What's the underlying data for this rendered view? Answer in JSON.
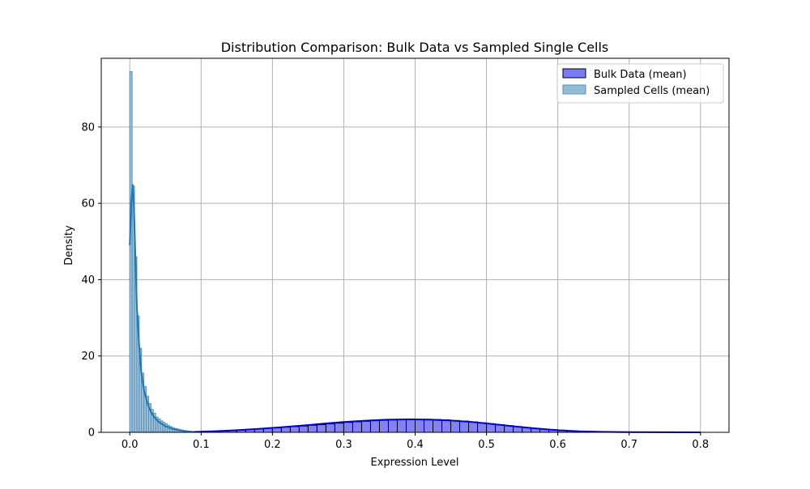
{
  "chart_data": {
    "type": "bar",
    "title": "Distribution Comparison: Bulk Data vs Sampled Single Cells",
    "xlabel": "Expression Level",
    "ylabel": "Density",
    "xlim": [
      -0.04,
      0.84
    ],
    "ylim": [
      0,
      98
    ],
    "xticks": [
      0.0,
      0.1,
      0.2,
      0.3,
      0.4,
      0.5,
      0.6,
      0.7,
      0.8
    ],
    "xtick_labels": [
      "0.0",
      "0.1",
      "0.2",
      "0.3",
      "0.4",
      "0.5",
      "0.6",
      "0.7",
      "0.8"
    ],
    "yticks": [
      0,
      20,
      40,
      60,
      80
    ],
    "ytick_labels": [
      "0",
      "20",
      "40",
      "60",
      "80"
    ],
    "grid": true,
    "legend_position": "top-right",
    "colors": {
      "bulk_fill": "#7b7bf5",
      "bulk_line": "#0000cc",
      "cells_fill": "#93bbd6",
      "cells_line": "#1f77b4"
    },
    "series": [
      {
        "name": "Bulk Data (mean)",
        "kind": "histogram",
        "bin_width": 0.0125,
        "bins": [
          [
            0.1,
            0.25
          ],
          [
            0.1125,
            0.3
          ],
          [
            0.125,
            0.4
          ],
          [
            0.1375,
            0.5
          ],
          [
            0.15,
            0.6
          ],
          [
            0.1625,
            0.75
          ],
          [
            0.175,
            0.9
          ],
          [
            0.1875,
            1.05
          ],
          [
            0.2,
            1.2
          ],
          [
            0.2125,
            1.35
          ],
          [
            0.225,
            1.5
          ],
          [
            0.2375,
            1.65
          ],
          [
            0.25,
            1.85
          ],
          [
            0.2625,
            2.0
          ],
          [
            0.275,
            2.2
          ],
          [
            0.2875,
            2.4
          ],
          [
            0.3,
            2.6
          ],
          [
            0.3125,
            2.75
          ],
          [
            0.325,
            2.9
          ],
          [
            0.3375,
            3.05
          ],
          [
            0.35,
            3.15
          ],
          [
            0.3625,
            3.25
          ],
          [
            0.375,
            3.3
          ],
          [
            0.3875,
            3.35
          ],
          [
            0.4,
            3.4
          ],
          [
            0.4125,
            3.4
          ],
          [
            0.425,
            3.35
          ],
          [
            0.4375,
            3.25
          ],
          [
            0.45,
            3.1
          ],
          [
            0.4625,
            2.95
          ],
          [
            0.475,
            2.75
          ],
          [
            0.4875,
            2.5
          ],
          [
            0.5,
            2.25
          ],
          [
            0.5125,
            2.0
          ],
          [
            0.525,
            1.75
          ],
          [
            0.5375,
            1.5
          ],
          [
            0.55,
            1.25
          ],
          [
            0.5625,
            1.05
          ],
          [
            0.575,
            0.85
          ],
          [
            0.5875,
            0.7
          ],
          [
            0.6,
            0.55
          ],
          [
            0.6125,
            0.42
          ],
          [
            0.625,
            0.32
          ],
          [
            0.6375,
            0.25
          ],
          [
            0.65,
            0.18
          ],
          [
            0.6625,
            0.13
          ],
          [
            0.675,
            0.1
          ],
          [
            0.6875,
            0.07
          ],
          [
            0.7,
            0.05
          ],
          [
            0.7125,
            0.04
          ],
          [
            0.725,
            0.03
          ],
          [
            0.7375,
            0.02
          ],
          [
            0.75,
            0.02
          ],
          [
            0.7625,
            0.01
          ],
          [
            0.775,
            0.01
          ],
          [
            0.7875,
            0.01
          ]
        ],
        "kde": {
          "x": [
            0.09,
            0.12,
            0.15,
            0.18,
            0.21,
            0.24,
            0.27,
            0.3,
            0.33,
            0.36,
            0.39,
            0.42,
            0.45,
            0.48,
            0.51,
            0.54,
            0.57,
            0.6,
            0.63,
            0.66,
            0.7,
            0.75,
            0.8
          ],
          "y": [
            0.1,
            0.3,
            0.55,
            0.9,
            1.3,
            1.75,
            2.25,
            2.7,
            3.05,
            3.3,
            3.4,
            3.35,
            3.1,
            2.7,
            2.15,
            1.55,
            1.0,
            0.55,
            0.27,
            0.12,
            0.05,
            0.02,
            0.01
          ]
        }
      },
      {
        "name": "Sampled Cells (mean)",
        "kind": "histogram",
        "bin_width": 0.0033,
        "bins": [
          [
            0.0,
            94.5
          ],
          [
            0.0033,
            64.5
          ],
          [
            0.0066,
            46.0
          ],
          [
            0.0099,
            30.5
          ],
          [
            0.0132,
            22.0
          ],
          [
            0.0165,
            15.5
          ],
          [
            0.0198,
            12.0
          ],
          [
            0.0231,
            9.5
          ],
          [
            0.0264,
            7.5
          ],
          [
            0.0297,
            6.0
          ],
          [
            0.033,
            5.0
          ],
          [
            0.0363,
            4.0
          ],
          [
            0.0396,
            3.5
          ],
          [
            0.0429,
            3.0
          ],
          [
            0.0462,
            2.6
          ],
          [
            0.0495,
            2.2
          ],
          [
            0.0528,
            1.8
          ],
          [
            0.0561,
            1.5
          ],
          [
            0.0594,
            1.2
          ],
          [
            0.0627,
            1.0
          ],
          [
            0.066,
            0.85
          ],
          [
            0.0693,
            0.7
          ],
          [
            0.0726,
            0.55
          ],
          [
            0.0759,
            0.45
          ],
          [
            0.0792,
            0.35
          ],
          [
            0.0825,
            0.28
          ],
          [
            0.0858,
            0.2
          ],
          [
            0.0891,
            0.15
          ]
        ],
        "kde": {
          "x": [
            0.0,
            0.002,
            0.004,
            0.006,
            0.008,
            0.01,
            0.013,
            0.016,
            0.02,
            0.025,
            0.03,
            0.035,
            0.04,
            0.05,
            0.06,
            0.07,
            0.08,
            0.09
          ],
          "y": [
            49.0,
            60.0,
            65.0,
            58.0,
            45.0,
            33.0,
            23.0,
            16.0,
            11.0,
            7.5,
            5.2,
            3.8,
            2.8,
            1.6,
            0.9,
            0.5,
            0.25,
            0.1
          ]
        }
      }
    ]
  }
}
